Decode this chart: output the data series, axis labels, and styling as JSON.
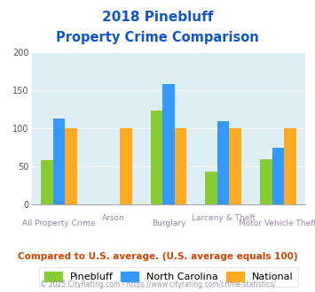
{
  "title_line1": "2018 Pinebluff",
  "title_line2": "Property Crime Comparison",
  "categories": [
    "All Property Crime",
    "Arson",
    "Burglary",
    "Larceny & Theft",
    "Motor Vehicle Theft"
  ],
  "pinebluff": [
    58,
    0,
    123,
    43,
    60
  ],
  "north_carolina": [
    113,
    0,
    159,
    109,
    75
  ],
  "national": [
    100,
    100,
    100,
    100,
    100
  ],
  "colors": {
    "pinebluff": "#88cc33",
    "north_carolina": "#3399ff",
    "national": "#ffaa22"
  },
  "ylim": [
    0,
    200
  ],
  "yticks": [
    0,
    50,
    100,
    150,
    200
  ],
  "plot_bg": "#ddeef5",
  "title_color": "#1155cc",
  "footer_text": "Compared to U.S. average. (U.S. average equals 100)",
  "footer_color": "#cc4400",
  "copyright_text": "© 2025 CityRating.com - https://www.cityrating.com/crime-statistics/",
  "copyright_color": "#9999aa",
  "legend_labels": [
    "Pinebluff",
    "North Carolina",
    "National"
  ],
  "bar_width": 0.22,
  "group_positions": [
    0.5,
    1.5,
    2.5,
    3.5,
    4.5
  ],
  "xlim": [
    0,
    5
  ]
}
